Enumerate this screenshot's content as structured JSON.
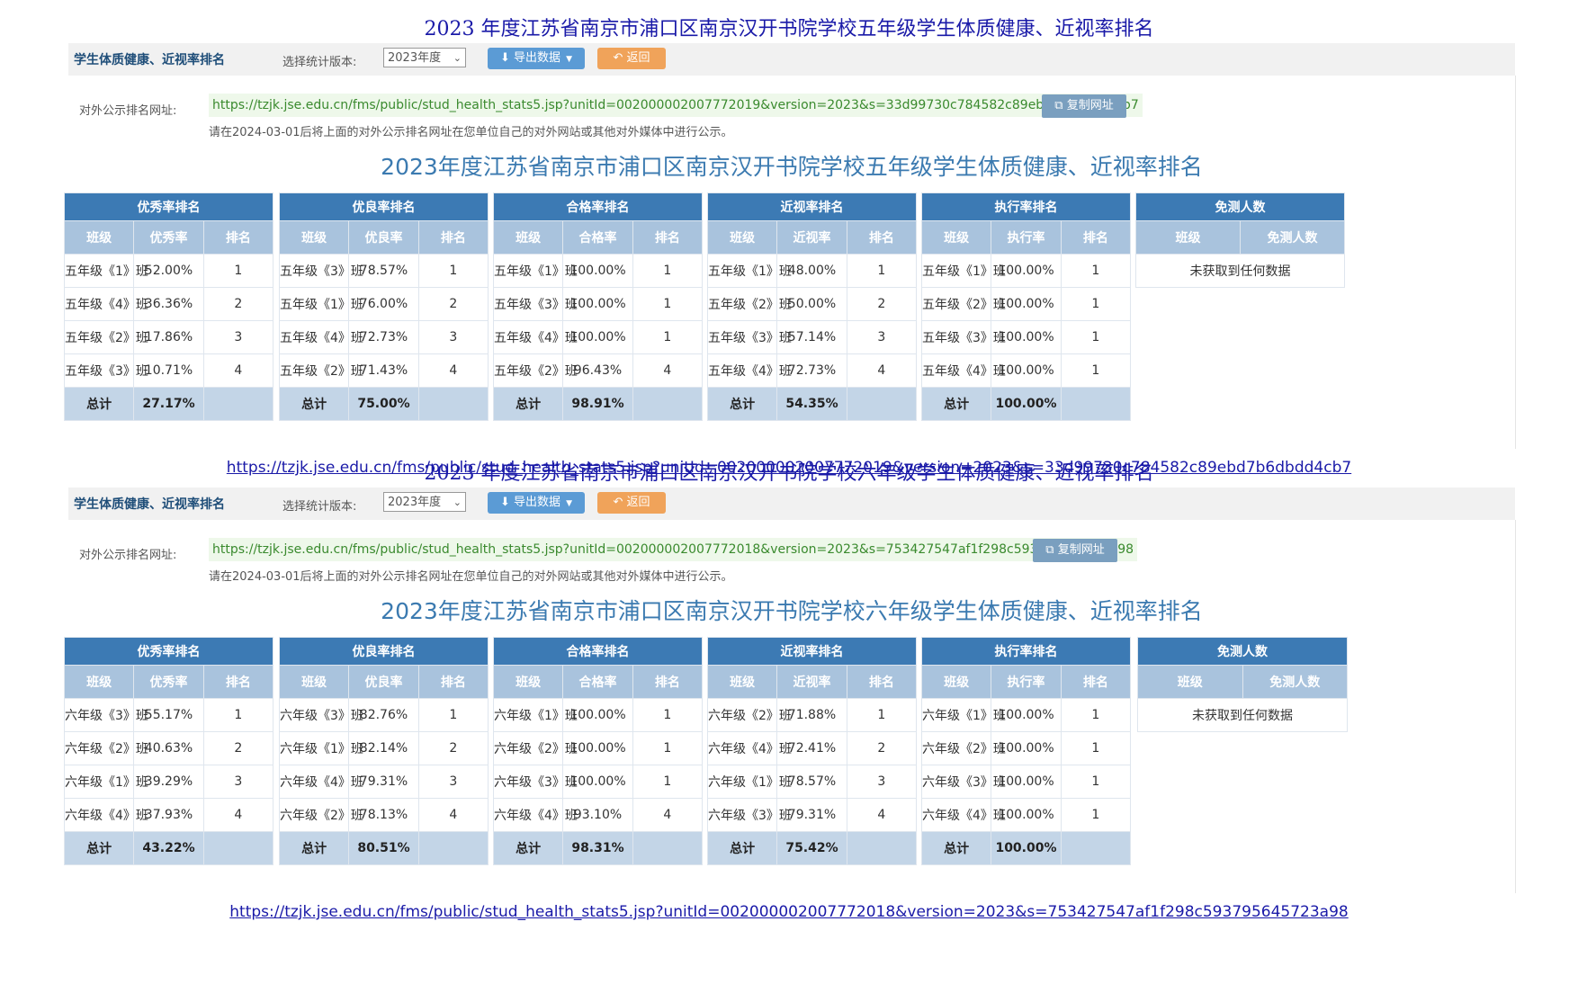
{
  "sections": [
    {
      "doc_title": "2023 年度江苏省南京市浦口区南京汉开书院学校五年级学生体质健康、近视率排名",
      "toolbar": {
        "title": "学生体质健康、近视率排名",
        "version_label": "选择统计版本:",
        "version_value": "2023年度",
        "export_label": "导出数据",
        "back_label": "返回"
      },
      "url_label": "对外公示排名网址:",
      "url": "https://tzjk.jse.edu.cn/fms/public/stud_health_stats5.jsp?unitId=002000002007772019&version=2023&s=33d99730c784582c89ebd7b6dbdd4cb7",
      "copy_label": "复制网址",
      "notice": "请在2024-03-01后将上面的对外公示排名网址在您单位自己的对外网站或其他对外媒体中进行公示。",
      "panel_title": "2023年度江苏省南京市浦口区南京汉开书院学校五年级学生体质健康、近视率排名",
      "exempt": {
        "title": "免测人数",
        "col1": "班级",
        "col2": "免测人数",
        "empty": "未获取到任何数据"
      },
      "groups": [
        {
          "title": "优秀率排名",
          "cols": [
            "班级",
            "优秀率",
            "排名"
          ],
          "rows": [
            [
              "五年级《1》班",
              "52.00%",
              "1"
            ],
            [
              "五年级《4》班",
              "36.36%",
              "2"
            ],
            [
              "五年级《2》班",
              "17.86%",
              "3"
            ],
            [
              "五年级《3》班",
              "10.71%",
              "4"
            ]
          ],
          "total_label": "总计",
          "total_value": "27.17%"
        },
        {
          "title": "优良率排名",
          "cols": [
            "班级",
            "优良率",
            "排名"
          ],
          "rows": [
            [
              "五年级《3》班",
              "78.57%",
              "1"
            ],
            [
              "五年级《1》班",
              "76.00%",
              "2"
            ],
            [
              "五年级《4》班",
              "72.73%",
              "3"
            ],
            [
              "五年级《2》班",
              "71.43%",
              "4"
            ]
          ],
          "total_label": "总计",
          "total_value": "75.00%"
        },
        {
          "title": "合格率排名",
          "cols": [
            "班级",
            "合格率",
            "排名"
          ],
          "rows": [
            [
              "五年级《1》班",
              "100.00%",
              "1"
            ],
            [
              "五年级《3》班",
              "100.00%",
              "1"
            ],
            [
              "五年级《4》班",
              "100.00%",
              "1"
            ],
            [
              "五年级《2》班",
              "96.43%",
              "4"
            ]
          ],
          "total_label": "总计",
          "total_value": "98.91%"
        },
        {
          "title": "近视率排名",
          "cols": [
            "班级",
            "近视率",
            "排名"
          ],
          "rows": [
            [
              "五年级《1》班",
              "48.00%",
              "1"
            ],
            [
              "五年级《2》班",
              "50.00%",
              "2"
            ],
            [
              "五年级《3》班",
              "57.14%",
              "3"
            ],
            [
              "五年级《4》班",
              "72.73%",
              "4"
            ]
          ],
          "total_label": "总计",
          "total_value": "54.35%"
        },
        {
          "title": "执行率排名",
          "cols": [
            "班级",
            "执行率",
            "排名"
          ],
          "rows": [
            [
              "五年级《1》班",
              "100.00%",
              "1"
            ],
            [
              "五年级《2》班",
              "100.00%",
              "1"
            ],
            [
              "五年级《3》班",
              "100.00%",
              "1"
            ],
            [
              "五年级《4》班",
              "100.00%",
              "1"
            ]
          ],
          "total_label": "总计",
          "total_value": "100.00%"
        }
      ],
      "footer_url": "https://tzjk.jse.edu.cn/fms/public/stud_health_stats5.jsp?unitId=002000002007772019&version=2023&s=33d99730c784582c89ebd7b6dbdd4cb7"
    },
    {
      "doc_title": "2023 年度江苏省南京市浦口区南京汉开书院学校六年级学生体质健康、近视率排名",
      "toolbar": {
        "title": "学生体质健康、近视率排名",
        "version_label": "选择统计版本:",
        "version_value": "2023年度",
        "export_label": "导出数据",
        "back_label": "返回"
      },
      "url_label": "对外公示排名网址:",
      "url": "https://tzjk.jse.edu.cn/fms/public/stud_health_stats5.jsp?unitId=002000002007772018&version=2023&s=753427547af1f298c593795645723a98",
      "copy_label": "复制网址",
      "notice": "请在2024-03-01后将上面的对外公示排名网址在您单位自己的对外网站或其他对外媒体中进行公示。",
      "panel_title": "2023年度江苏省南京市浦口区南京汉开书院学校六年级学生体质健康、近视率排名",
      "exempt": {
        "title": "免测人数",
        "col1": "班级",
        "col2": "免测人数",
        "empty": "未获取到任何数据"
      },
      "groups": [
        {
          "title": "优秀率排名",
          "cols": [
            "班级",
            "优秀率",
            "排名"
          ],
          "rows": [
            [
              "六年级《3》班",
              "55.17%",
              "1"
            ],
            [
              "六年级《2》班",
              "40.63%",
              "2"
            ],
            [
              "六年级《1》班",
              "39.29%",
              "3"
            ],
            [
              "六年级《4》班",
              "37.93%",
              "4"
            ]
          ],
          "total_label": "总计",
          "total_value": "43.22%"
        },
        {
          "title": "优良率排名",
          "cols": [
            "班级",
            "优良率",
            "排名"
          ],
          "rows": [
            [
              "六年级《3》班",
              "82.76%",
              "1"
            ],
            [
              "六年级《1》班",
              "82.14%",
              "2"
            ],
            [
              "六年级《4》班",
              "79.31%",
              "3"
            ],
            [
              "六年级《2》班",
              "78.13%",
              "4"
            ]
          ],
          "total_label": "总计",
          "total_value": "80.51%"
        },
        {
          "title": "合格率排名",
          "cols": [
            "班级",
            "合格率",
            "排名"
          ],
          "rows": [
            [
              "六年级《1》班",
              "100.00%",
              "1"
            ],
            [
              "六年级《2》班",
              "100.00%",
              "1"
            ],
            [
              "六年级《3》班",
              "100.00%",
              "1"
            ],
            [
              "六年级《4》班",
              "93.10%",
              "4"
            ]
          ],
          "total_label": "总计",
          "total_value": "98.31%"
        },
        {
          "title": "近视率排名",
          "cols": [
            "班级",
            "近视率",
            "排名"
          ],
          "rows": [
            [
              "六年级《2》班",
              "71.88%",
              "1"
            ],
            [
              "六年级《4》班",
              "72.41%",
              "2"
            ],
            [
              "六年级《1》班",
              "78.57%",
              "3"
            ],
            [
              "六年级《3》班",
              "79.31%",
              "4"
            ]
          ],
          "total_label": "总计",
          "total_value": "75.42%"
        },
        {
          "title": "执行率排名",
          "cols": [
            "班级",
            "执行率",
            "排名"
          ],
          "rows": [
            [
              "六年级《1》班",
              "100.00%",
              "1"
            ],
            [
              "六年级《2》班",
              "100.00%",
              "1"
            ],
            [
              "六年级《3》班",
              "100.00%",
              "1"
            ],
            [
              "六年级《4》班",
              "100.00%",
              "1"
            ]
          ],
          "total_label": "总计",
          "total_value": "100.00%"
        }
      ],
      "footer_url": "https://tzjk.jse.edu.cn/fms/public/stud_health_stats5.jsp?unitId=002000002007772018&version=2023&s=753427547af1f298c593795645723a98"
    }
  ]
}
